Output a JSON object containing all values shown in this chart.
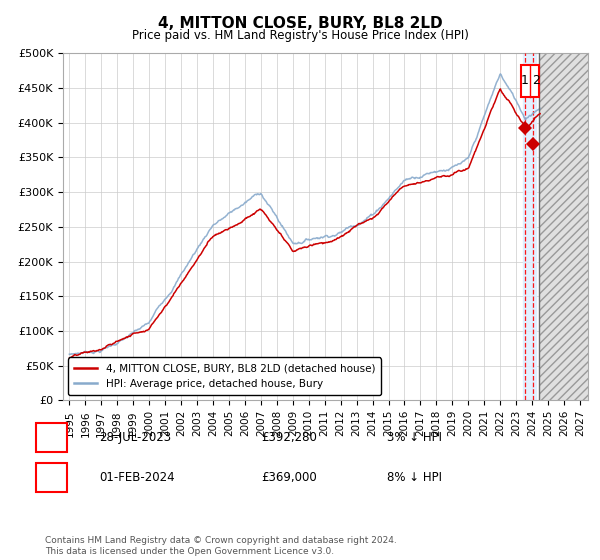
{
  "title": "4, MITTON CLOSE, BURY, BL8 2LD",
  "subtitle": "Price paid vs. HM Land Registry's House Price Index (HPI)",
  "ylim": [
    0,
    500000
  ],
  "xlim_start": 1994.6,
  "xlim_end": 2027.5,
  "yticks": [
    0,
    50000,
    100000,
    150000,
    200000,
    250000,
    300000,
    350000,
    400000,
    450000,
    500000
  ],
  "ytick_labels": [
    "£0",
    "£50K",
    "£100K",
    "£150K",
    "£200K",
    "£250K",
    "£300K",
    "£350K",
    "£400K",
    "£450K",
    "£500K"
  ],
  "xticks": [
    1995,
    1996,
    1997,
    1998,
    1999,
    2000,
    2001,
    2002,
    2003,
    2004,
    2005,
    2006,
    2007,
    2008,
    2009,
    2010,
    2011,
    2012,
    2013,
    2014,
    2015,
    2016,
    2017,
    2018,
    2019,
    2020,
    2021,
    2022,
    2023,
    2024,
    2025,
    2026,
    2027
  ],
  "sale1_x": 2023.57,
  "sale1_y": 392280,
  "sale2_x": 2024.08,
  "sale2_y": 369000,
  "current_date_x": 2024.45,
  "red_line_color": "#cc0000",
  "blue_line_color": "#88aacc",
  "footer": "Contains HM Land Registry data © Crown copyright and database right 2024.\nThis data is licensed under the Open Government Licence v3.0.",
  "legend1": "4, MITTON CLOSE, BURY, BL8 2LD (detached house)",
  "legend2": "HPI: Average price, detached house, Bury",
  "sale1_date": "28-JUL-2023",
  "sale1_price": "£392,280",
  "sale1_hpi_txt": "3% ↓ HPI",
  "sale2_date": "01-FEB-2024",
  "sale2_price": "£369,000",
  "sale2_hpi_txt": "8% ↓ HPI"
}
